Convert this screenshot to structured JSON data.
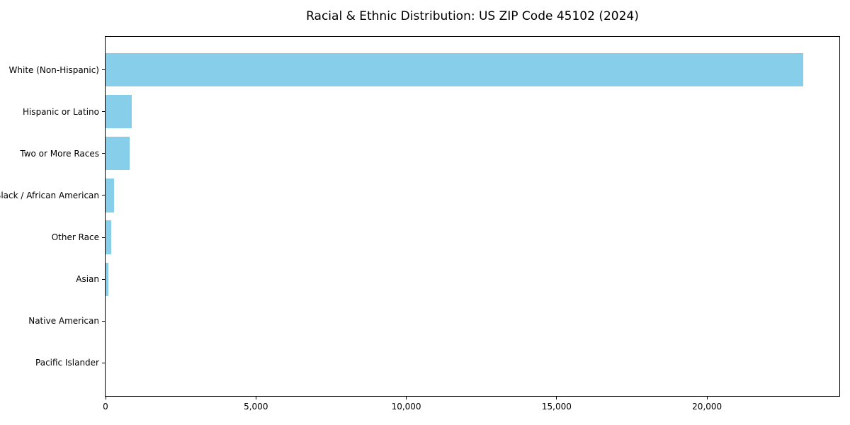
{
  "chart_data": {
    "type": "bar",
    "orientation": "horizontal",
    "title": "Racial & Ethnic Distribution: US ZIP Code 45102 (2024)",
    "categories": [
      "White (Non-Hispanic)",
      "Hispanic or Latino",
      "Two or More Races",
      "Black / African American",
      "Other Race",
      "Asian",
      "Native American",
      "Pacific Islander"
    ],
    "values": [
      23200,
      860,
      810,
      290,
      200,
      95,
      0,
      0
    ],
    "xlabel": "",
    "ylabel": "",
    "xlim": [
      0,
      24400
    ],
    "xticks": [
      0,
      5000,
      10000,
      15000,
      20000
    ],
    "xtick_labels": [
      "0",
      "5,000",
      "10,000",
      "15,000",
      "20,000"
    ],
    "grid": false,
    "legend": null,
    "bar_color": "#87ceeb",
    "axis_color": "#000000",
    "text_color": "#000000",
    "background_color": "#ffffff"
  }
}
